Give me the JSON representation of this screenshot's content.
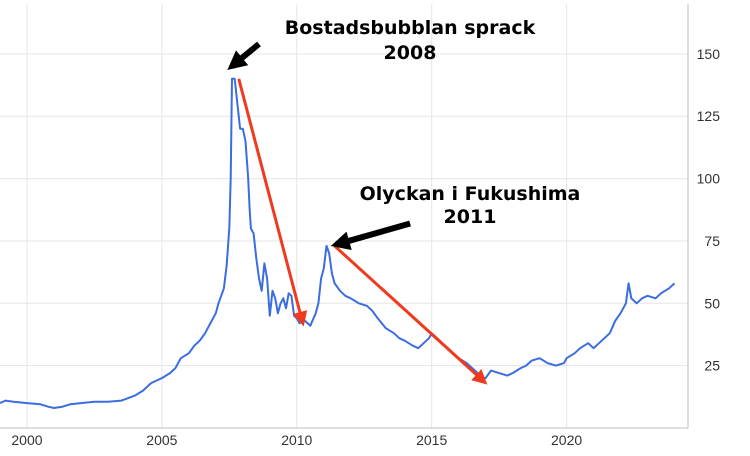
{
  "chart_data": {
    "type": "line",
    "title": "",
    "xlabel": "",
    "ylabel": "",
    "xlim": [
      1999,
      2024.5
    ],
    "ylim": [
      0,
      170
    ],
    "x_ticks": [
      2000,
      2005,
      2010,
      2015,
      2020
    ],
    "y_ticks": [
      25,
      50,
      75,
      100,
      125,
      150
    ],
    "grid": true,
    "legend": "none",
    "line_color": "#3a6de0",
    "series": [
      {
        "points": [
          [
            1999.0,
            10
          ],
          [
            1999.2,
            11
          ],
          [
            1999.5,
            10.5
          ],
          [
            2000.0,
            10
          ],
          [
            2000.5,
            9.5
          ],
          [
            2000.8,
            8.5
          ],
          [
            2001.0,
            8
          ],
          [
            2001.3,
            8.5
          ],
          [
            2001.6,
            9.5
          ],
          [
            2002.0,
            10
          ],
          [
            2002.5,
            10.5
          ],
          [
            2003.0,
            10.5
          ],
          [
            2003.5,
            11
          ],
          [
            2004.0,
            13
          ],
          [
            2004.3,
            15
          ],
          [
            2004.6,
            18
          ],
          [
            2005.0,
            20
          ],
          [
            2005.3,
            22
          ],
          [
            2005.5,
            24
          ],
          [
            2005.7,
            28
          ],
          [
            2006.0,
            30
          ],
          [
            2006.2,
            33
          ],
          [
            2006.4,
            35
          ],
          [
            2006.6,
            38
          ],
          [
            2006.8,
            42
          ],
          [
            2007.0,
            46
          ],
          [
            2007.1,
            50
          ],
          [
            2007.3,
            56
          ],
          [
            2007.4,
            65
          ],
          [
            2007.5,
            80
          ],
          [
            2007.55,
            100
          ],
          [
            2007.6,
            140
          ],
          [
            2007.7,
            140
          ],
          [
            2007.8,
            130
          ],
          [
            2007.9,
            120
          ],
          [
            2008.0,
            120
          ],
          [
            2008.1,
            115
          ],
          [
            2008.2,
            100
          ],
          [
            2008.25,
            88
          ],
          [
            2008.3,
            80
          ],
          [
            2008.4,
            78
          ],
          [
            2008.5,
            68
          ],
          [
            2008.6,
            60
          ],
          [
            2008.7,
            55
          ],
          [
            2008.8,
            66
          ],
          [
            2008.9,
            60
          ],
          [
            2009.0,
            45
          ],
          [
            2009.1,
            55
          ],
          [
            2009.2,
            52
          ],
          [
            2009.3,
            46
          ],
          [
            2009.4,
            50
          ],
          [
            2009.5,
            52
          ],
          [
            2009.6,
            48
          ],
          [
            2009.7,
            54
          ],
          [
            2009.8,
            53
          ],
          [
            2009.9,
            45
          ],
          [
            2010.0,
            44
          ],
          [
            2010.1,
            42
          ],
          [
            2010.3,
            43
          ],
          [
            2010.5,
            41
          ],
          [
            2010.7,
            46
          ],
          [
            2010.8,
            50
          ],
          [
            2010.9,
            60
          ],
          [
            2011.0,
            64
          ],
          [
            2011.1,
            73
          ],
          [
            2011.2,
            70
          ],
          [
            2011.3,
            62
          ],
          [
            2011.4,
            58
          ],
          [
            2011.6,
            55
          ],
          [
            2011.8,
            53
          ],
          [
            2012.0,
            52
          ],
          [
            2012.3,
            50
          ],
          [
            2012.6,
            49
          ],
          [
            2012.8,
            47
          ],
          [
            2013.0,
            44
          ],
          [
            2013.3,
            40
          ],
          [
            2013.6,
            38
          ],
          [
            2013.8,
            36
          ],
          [
            2014.0,
            35
          ],
          [
            2014.3,
            33
          ],
          [
            2014.5,
            32
          ],
          [
            2014.7,
            34
          ],
          [
            2014.9,
            36
          ],
          [
            2015.0,
            38
          ],
          [
            2015.2,
            36
          ],
          [
            2015.4,
            34
          ],
          [
            2015.6,
            32
          ],
          [
            2015.8,
            30
          ],
          [
            2016.0,
            28
          ],
          [
            2016.3,
            26
          ],
          [
            2016.6,
            23
          ],
          [
            2016.9,
            20
          ],
          [
            2017.0,
            20
          ],
          [
            2017.2,
            23
          ],
          [
            2017.5,
            22
          ],
          [
            2017.8,
            21
          ],
          [
            2018.0,
            22
          ],
          [
            2018.3,
            24
          ],
          [
            2018.5,
            25
          ],
          [
            2018.7,
            27
          ],
          [
            2019.0,
            28
          ],
          [
            2019.3,
            26
          ],
          [
            2019.6,
            25
          ],
          [
            2019.9,
            26
          ],
          [
            2020.0,
            28
          ],
          [
            2020.3,
            30
          ],
          [
            2020.5,
            32
          ],
          [
            2020.8,
            34
          ],
          [
            2021.0,
            32
          ],
          [
            2021.3,
            35
          ],
          [
            2021.6,
            38
          ],
          [
            2021.8,
            43
          ],
          [
            2022.0,
            46
          ],
          [
            2022.2,
            50
          ],
          [
            2022.3,
            58
          ],
          [
            2022.4,
            52
          ],
          [
            2022.6,
            50
          ],
          [
            2022.8,
            52
          ],
          [
            2023.0,
            53
          ],
          [
            2023.3,
            52
          ],
          [
            2023.5,
            54
          ],
          [
            2023.8,
            56
          ],
          [
            2024.0,
            58
          ]
        ]
      }
    ],
    "annotations": [
      {
        "line1": "Bostadsbubblan sprack",
        "line2": "2008",
        "text_color": "#000000",
        "black_arrow": {
          "from": [
            2008.6,
            154
          ],
          "to": [
            2007.7,
            146
          ]
        },
        "red_arrow": {
          "from": [
            2007.85,
            140
          ],
          "to": [
            2010.2,
            43
          ],
          "color": "#f03a1f"
        }
      },
      {
        "line1": "Olyckan i Fukushima",
        "line2": "2011",
        "text_color": "#000000",
        "black_arrow": {
          "from": [
            2014.2,
            82
          ],
          "to": [
            2011.6,
            74
          ]
        },
        "red_arrow": {
          "from": [
            2011.4,
            73
          ],
          "to": [
            2016.9,
            19
          ],
          "color": "#f03a1f"
        }
      }
    ]
  }
}
